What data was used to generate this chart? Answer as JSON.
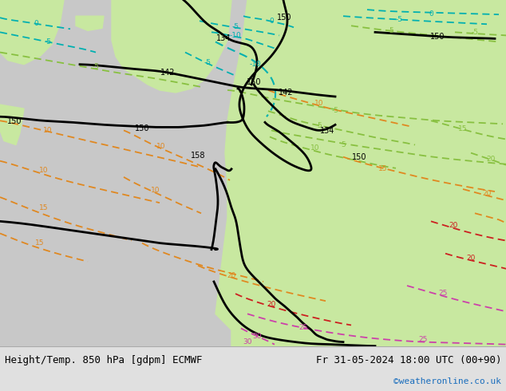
{
  "title_left": "Height/Temp. 850 hPa [gdpm] ECMWF",
  "title_right": "Fr 31-05-2024 18:00 UTC (00+90)",
  "credit": "©weatheronline.co.uk",
  "credit_color": "#1a6ebd",
  "bg_sea": "#c8c8c8",
  "bg_land_light": "#c8e8a0",
  "bg_land_green": "#b0dc78",
  "bottom_bar": "#e0e0e0",
  "col_black": "#000000",
  "col_cyan": "#00b0b0",
  "col_green": "#40a840",
  "col_yellow_green": "#88c040",
  "col_orange": "#e08820",
  "col_red": "#cc2020",
  "col_magenta": "#cc40aa",
  "title_fontsize": 9,
  "credit_fontsize": 8,
  "figsize": [
    6.34,
    4.9
  ],
  "dpi": 100
}
